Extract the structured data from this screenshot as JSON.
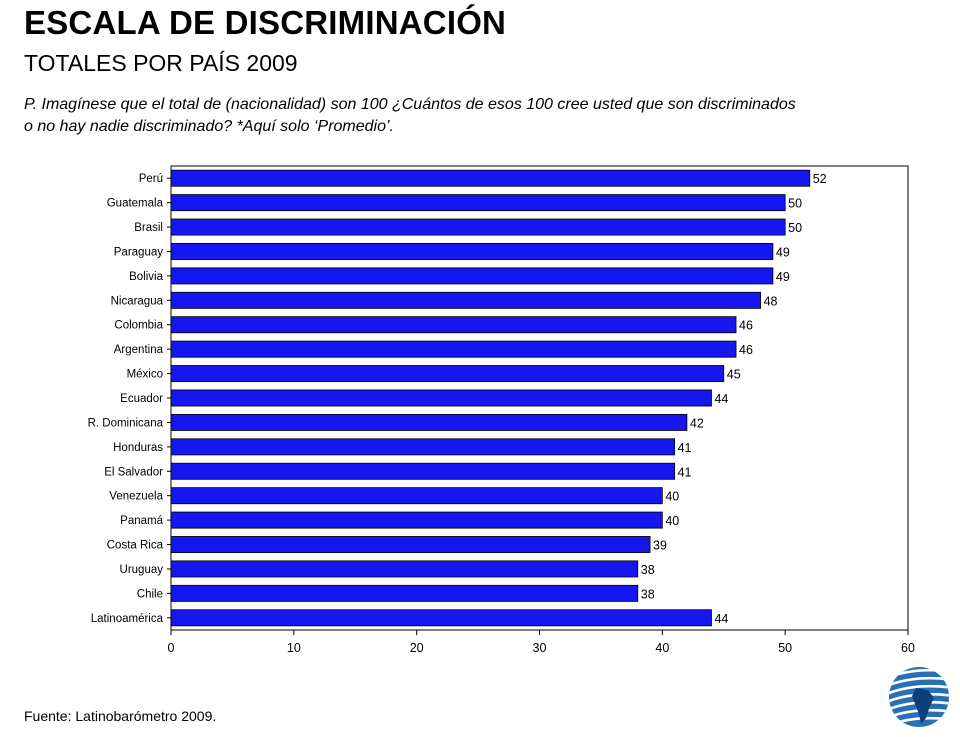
{
  "header": {
    "title": "ESCALA DE DISCRIMINACIÓN",
    "subtitle": "TOTALES POR PAÍS 2009",
    "question_line1": "P. Imagínese que el total de (nacionalidad) son 100 ¿Cuántos de esos 100 cree usted que son discriminados",
    "question_line2": "o no hay nadie discriminado? *Aquí solo ‘Promedio’."
  },
  "footer": {
    "source": "Fuente:  Latinobarómetro 2009."
  },
  "colors": {
    "bar": "#1616ee",
    "bar_stroke": "#000000",
    "axis": "#000000"
  },
  "logo": {
    "icon": "latinobarometro-globe-logo"
  },
  "chart_data": {
    "type": "bar",
    "orientation": "horizontal",
    "title": "",
    "xlabel": "",
    "ylabel": "",
    "categories": [
      "Perú",
      "Guatemala",
      "Brasil",
      "Paraguay",
      "Bolivia",
      "Nicaragua",
      "Colombia",
      "Argentina",
      "México",
      "Ecuador",
      "R. Dominicana",
      "Honduras",
      "El Salvador",
      "Venezuela",
      "Panamá",
      "Costa Rica",
      "Uruguay",
      "Chile",
      "Latinoamérica"
    ],
    "values": [
      52,
      50,
      50,
      49,
      49,
      48,
      46,
      46,
      45,
      44,
      42,
      41,
      41,
      40,
      40,
      39,
      38,
      38,
      44
    ],
    "xlim": [
      0,
      60
    ],
    "xticks": [
      0,
      10,
      20,
      30,
      40,
      50,
      60
    ],
    "data_labels": true,
    "grid": false,
    "legend": "none"
  }
}
